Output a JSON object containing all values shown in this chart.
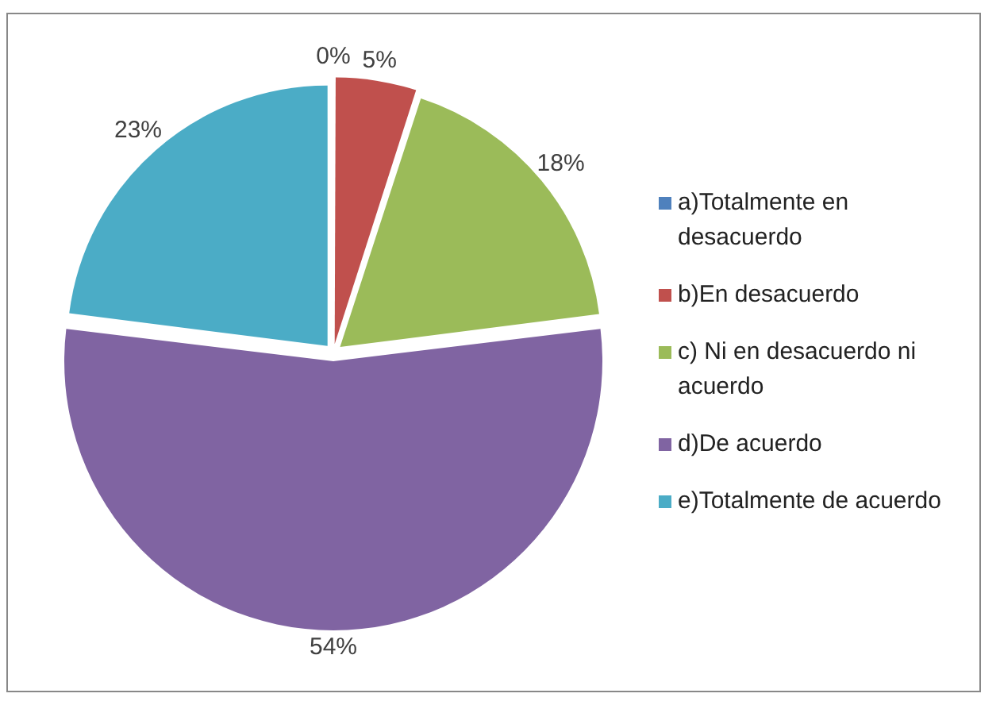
{
  "chart_data": {
    "type": "pie",
    "categories": [
      "a)Totalmente en desacuerdo",
      "b)En desacuerdo",
      "c) Ni en desacuerdo ni acuerdo",
      "d)De acuerdo",
      "e)Totalmente de acuerdo"
    ],
    "values": [
      0,
      5,
      18,
      54,
      23
    ],
    "value_labels": [
      "0%",
      "5%",
      "18%",
      "54%",
      "23%"
    ],
    "colors": [
      "#4f81bd",
      "#c0504d",
      "#9bbb59",
      "#8064a2",
      "#4bacc6"
    ],
    "legend": "right"
  }
}
